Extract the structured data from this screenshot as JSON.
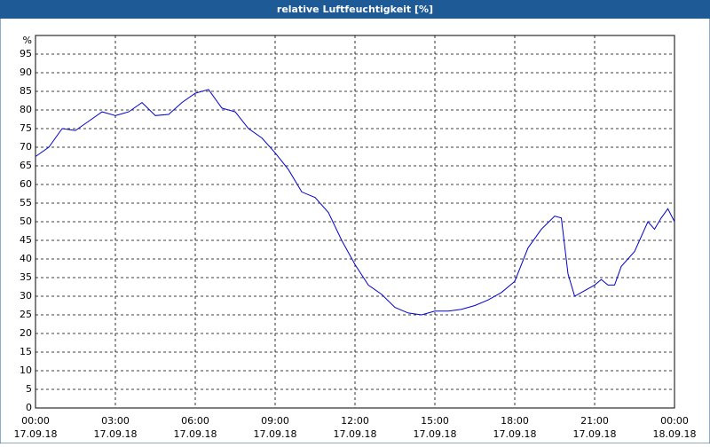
{
  "chart_data": {
    "type": "line",
    "title": "relative Luftfeuchtigkeit [%]",
    "ylabel": "%",
    "x": [
      0,
      0.5,
      1,
      1.5,
      2,
      2.5,
      3,
      3.5,
      4,
      4.5,
      5,
      5.5,
      6,
      6.5,
      7,
      7.5,
      8,
      8.5,
      9,
      9.5,
      10,
      10.5,
      11,
      11.5,
      12,
      12.5,
      13,
      13.5,
      14,
      14.5,
      15,
      15.5,
      16,
      16.5,
      17,
      17.5,
      18,
      18.5,
      19,
      19.5,
      19.75,
      20,
      20.25,
      20.5,
      21,
      21.25,
      21.5,
      21.75,
      22,
      22.5,
      23,
      23.25,
      23.5,
      23.75,
      24
    ],
    "series": [
      {
        "name": "relative Luftfeuchtigkeit",
        "color": "#0000cc",
        "values": [
          67.5,
          70,
          75,
          74.5,
          77,
          79.5,
          78.5,
          79.5,
          82,
          78.5,
          78.8,
          82,
          84.5,
          85.5,
          80.5,
          79.5,
          75,
          72.5,
          68.5,
          64,
          58,
          56.5,
          52.5,
          45,
          38.5,
          33,
          30.5,
          27,
          25.5,
          25,
          26,
          26,
          26.5,
          27.5,
          29,
          31,
          34,
          43,
          48,
          51.5,
          51,
          36,
          30,
          31,
          33,
          34.5,
          33,
          33,
          38,
          42,
          50,
          48,
          51,
          53.5,
          50
        ]
      }
    ],
    "xlim": [
      0,
      24
    ],
    "xticks": [
      {
        "value": 0,
        "label": "00:00",
        "date": "17.09.18"
      },
      {
        "value": 3,
        "label": "03:00",
        "date": "17.09.18"
      },
      {
        "value": 6,
        "label": "06:00",
        "date": "17.09.18"
      },
      {
        "value": 9,
        "label": "09:00",
        "date": "17.09.18"
      },
      {
        "value": 12,
        "label": "12:00",
        "date": "17.09.18"
      },
      {
        "value": 15,
        "label": "15:00",
        "date": "17.09.18"
      },
      {
        "value": 18,
        "label": "18:00",
        "date": "17.09.18"
      },
      {
        "value": 21,
        "label": "21:00",
        "date": "17.09.18"
      },
      {
        "value": 24,
        "label": "00:00",
        "date": "18.09.18"
      }
    ],
    "ylim": [
      0,
      100
    ],
    "yticks": [
      0,
      5,
      10,
      15,
      20,
      25,
      30,
      35,
      40,
      45,
      50,
      55,
      60,
      65,
      70,
      75,
      80,
      85,
      90,
      95
    ],
    "grid": true
  }
}
